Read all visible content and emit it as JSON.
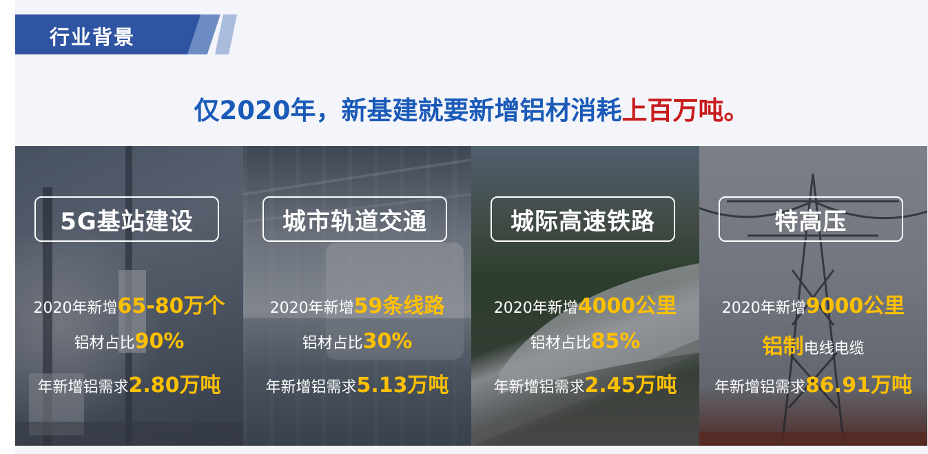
{
  "section": {
    "title": "行业背景"
  },
  "headline": {
    "main": "仅2020年，新基建就要新增铝材消耗",
    "emphasis": "上百万吨。"
  },
  "colors": {
    "banner": "#2f54a1",
    "headline_blue": "#1a5ab8",
    "headline_red": "#c81d1d",
    "highlight": "#ffc000"
  },
  "panels": [
    {
      "title": "5G基站建设",
      "line1_prefix": "2020年新增",
      "line1_value": "65-80万个",
      "line2_prefix": "铝材占比",
      "line2_value": "90%",
      "line3_prefix": "年新增铝需求",
      "line3_value": "2.80万吨"
    },
    {
      "title": "城市轨道交通",
      "line1_prefix": "2020年新增",
      "line1_value": "59条线路",
      "line2_prefix": "铝材占比",
      "line2_value": "30%",
      "line3_prefix": "年新增铝需求",
      "line3_value": "5.13万吨"
    },
    {
      "title": "城际高速铁路",
      "line1_prefix": "2020年新增",
      "line1_value": "4000公里",
      "line2_prefix": "铝材占比",
      "line2_value": "85%",
      "line3_prefix": "年新增铝需求",
      "line3_value": "2.45万吨"
    },
    {
      "title": "特高压",
      "line1_prefix": "2020年新增",
      "line1_value": "9000公里",
      "line2_value": "铝制",
      "line2_suffix": "电线电缆",
      "line3_prefix": "年新增铝需求",
      "line3_value": "86.91万吨"
    }
  ]
}
